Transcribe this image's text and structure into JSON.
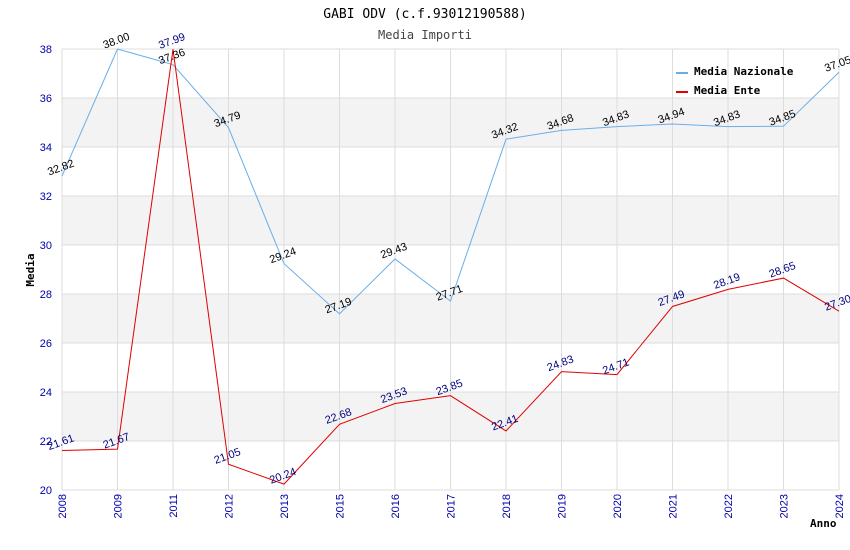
{
  "chart_data": {
    "type": "line",
    "title": "GABI ODV (c.f.93012190588)",
    "subtitle": "Media Importi",
    "xlabel": "Anno",
    "ylabel": "Media",
    "ylim": [
      20,
      38
    ],
    "yticks": [
      "20",
      "22",
      "24",
      "26",
      "28",
      "30",
      "32",
      "34",
      "36",
      "38"
    ],
    "categories": [
      "2008",
      "2009",
      "2011",
      "2012",
      "2013",
      "2015",
      "2016",
      "2017",
      "2018",
      "2019",
      "2020",
      "2021",
      "2022",
      "2023",
      "2024"
    ],
    "series": [
      {
        "name": "Media Nazionale",
        "color": "#6aaee8",
        "values": [
          32.82,
          38.0,
          37.36,
          34.79,
          29.24,
          27.19,
          29.43,
          27.71,
          34.32,
          34.68,
          34.83,
          34.94,
          34.83,
          34.85,
          37.05
        ],
        "labels": [
          "32.82",
          "38.00",
          "37.36",
          "34.79",
          "29.24",
          "27.19",
          "29.43",
          "27.71",
          "34.32",
          "34.68",
          "34.83",
          "34.94",
          "34.83",
          "34.85",
          "37.05"
        ]
      },
      {
        "name": "Media Ente",
        "color": "#e00000",
        "values": [
          21.61,
          21.67,
          37.99,
          21.05,
          20.24,
          22.68,
          23.53,
          23.85,
          22.41,
          24.83,
          24.71,
          27.49,
          28.19,
          28.65,
          27.3
        ],
        "labels": [
          "21.61",
          "21.67",
          "37.99",
          "21.05",
          "20.24",
          "22.68",
          "23.53",
          "23.85",
          "22.41",
          "24.83",
          "24.71",
          "27.49",
          "28.19",
          "28.65",
          "27.30"
        ]
      }
    ],
    "legend_position": "top-right",
    "grid": true
  }
}
